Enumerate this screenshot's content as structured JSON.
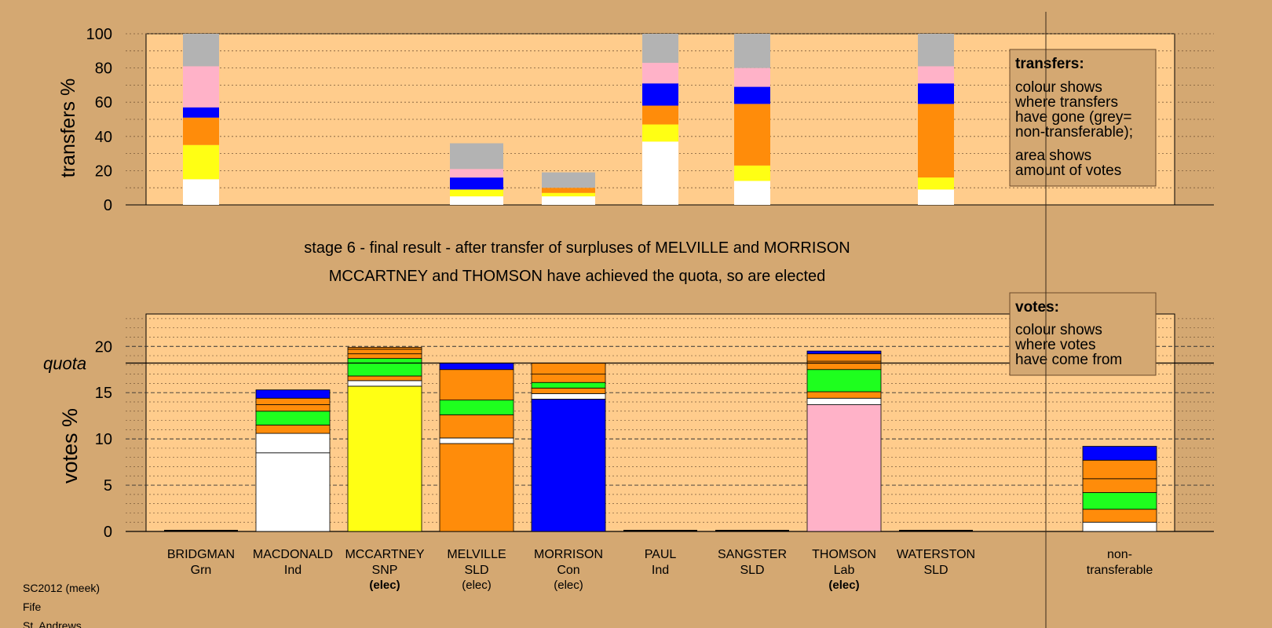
{
  "top_chart": {
    "ylabel": "transfers %",
    "yticks": [
      0,
      20,
      40,
      60,
      80,
      100
    ],
    "ylim": [
      0,
      100
    ],
    "legend_title": "transfers:",
    "legend_lines_1": [
      "colour shows",
      "where transfers",
      "have gone (grey=",
      "non-transferable);"
    ],
    "legend_lines_2": [
      "area shows",
      "amount of votes"
    ]
  },
  "titles": {
    "line1": "stage 6 - final result - after transfer of surpluses of MELVILLE and MORRISON",
    "line2": "MCCARTNEY and THOMSON have achieved the quota, so are elected"
  },
  "bottom_chart": {
    "ylabel": "votes %",
    "quota_label": "quota",
    "quota": 18.2,
    "yticks": [
      0,
      5,
      10,
      15,
      20
    ],
    "ylim": [
      0,
      23.5
    ],
    "legend_title": "votes:",
    "legend_lines": [
      "colour shows",
      "where votes",
      "have come from"
    ]
  },
  "candidates": [
    {
      "name": "BRIDGMAN",
      "party": "Grn",
      "status": ""
    },
    {
      "name": "MACDONALD",
      "party": "Ind",
      "status": ""
    },
    {
      "name": "MCCARTNEY",
      "party": "SNP",
      "status": "(elec)",
      "status_bold": true
    },
    {
      "name": "MELVILLE",
      "party": "SLD",
      "status": "(elec)",
      "status_bold": false
    },
    {
      "name": "MORRISON",
      "party": "Con",
      "status": "(elec)",
      "status_bold": false
    },
    {
      "name": "PAUL",
      "party": "Ind",
      "status": ""
    },
    {
      "name": "SANGSTER",
      "party": "SLD",
      "status": ""
    },
    {
      "name": "THOMSON",
      "party": "Lab",
      "status": "(elec)",
      "status_bold": true
    },
    {
      "name": "WATERSTON",
      "party": "SLD",
      "status": ""
    }
  ],
  "nontransferable_label": [
    "non-",
    "transferable"
  ],
  "footer": [
    "SC2012 (meek)",
    "Fife",
    "St. Andrews"
  ],
  "colors": {
    "background": "#D4A872",
    "plot_bg": "#FFCC8C",
    "white": "#FFFFFF",
    "yellow": "#FFFF14",
    "orange": "#FF8C0A",
    "green": "#1EFF1E",
    "blue": "#0000FF",
    "pink": "#FFB2C8",
    "grey": "#B3B3B3"
  },
  "chart_data": [
    {
      "type": "bar",
      "stacked": true,
      "title": "",
      "ylabel": "transfers %",
      "ylim": [
        0,
        100
      ],
      "categories": [
        "BRIDGMAN",
        "MACDONALD",
        "MCCARTNEY",
        "MELVILLE",
        "MORRISON",
        "PAUL",
        "SANGSTER",
        "THOMSON",
        "WATERSTON"
      ],
      "bars": [
        {
          "category": "BRIDGMAN",
          "segments": [
            {
              "color": "white",
              "value": 15
            },
            {
              "color": "yellow",
              "value": 20
            },
            {
              "color": "orange",
              "value": 16
            },
            {
              "color": "blue",
              "value": 6
            },
            {
              "color": "pink",
              "value": 24
            },
            {
              "color": "grey",
              "value": 19
            }
          ]
        },
        {
          "category": "MELVILLE",
          "segments": [
            {
              "color": "white",
              "value": 5
            },
            {
              "color": "yellow",
              "value": 4
            },
            {
              "color": "blue",
              "value": 7
            },
            {
              "color": "pink",
              "value": 5
            },
            {
              "color": "grey",
              "value": 15
            }
          ]
        },
        {
          "category": "MORRISON",
          "segments": [
            {
              "color": "white",
              "value": 5
            },
            {
              "color": "yellow",
              "value": 2
            },
            {
              "color": "orange",
              "value": 3
            },
            {
              "color": "grey",
              "value": 9
            }
          ]
        },
        {
          "category": "PAUL",
          "segments": [
            {
              "color": "white",
              "value": 37
            },
            {
              "color": "yellow",
              "value": 10
            },
            {
              "color": "orange",
              "value": 11
            },
            {
              "color": "blue",
              "value": 13
            },
            {
              "color": "pink",
              "value": 12
            },
            {
              "color": "grey",
              "value": 17
            }
          ]
        },
        {
          "category": "SANGSTER",
          "segments": [
            {
              "color": "white",
              "value": 14
            },
            {
              "color": "yellow",
              "value": 9
            },
            {
              "color": "orange",
              "value": 36
            },
            {
              "color": "blue",
              "value": 10
            },
            {
              "color": "pink",
              "value": 11
            },
            {
              "color": "grey",
              "value": 20
            }
          ]
        },
        {
          "category": "WATERSTON",
          "segments": [
            {
              "color": "white",
              "value": 9
            },
            {
              "color": "yellow",
              "value": 7
            },
            {
              "color": "orange",
              "value": 43
            },
            {
              "color": "blue",
              "value": 12
            },
            {
              "color": "pink",
              "value": 10
            },
            {
              "color": "grey",
              "value": 19
            }
          ]
        }
      ]
    },
    {
      "type": "bar",
      "stacked": true,
      "title": "",
      "ylabel": "votes %",
      "ylim": [
        0,
        23.5
      ],
      "quota": 18.2,
      "categories": [
        "BRIDGMAN",
        "MACDONALD",
        "MCCARTNEY",
        "MELVILLE",
        "MORRISON",
        "PAUL",
        "SANGSTER",
        "THOMSON",
        "WATERSTON",
        "non-transferable"
      ],
      "bars": [
        {
          "category": "BRIDGMAN",
          "segments": []
        },
        {
          "category": "MACDONALD",
          "segments": [
            {
              "color": "white",
              "value": 8.5
            },
            {
              "color": "white",
              "value": 2.1
            },
            {
              "color": "orange",
              "value": 0.9
            },
            {
              "color": "green",
              "value": 1.5
            },
            {
              "color": "orange",
              "value": 0.7
            },
            {
              "color": "orange",
              "value": 0.7
            },
            {
              "color": "blue",
              "value": 0.9
            }
          ]
        },
        {
          "category": "MCCARTNEY",
          "segments": [
            {
              "color": "yellow",
              "value": 15.7
            },
            {
              "color": "white",
              "value": 0.6
            },
            {
              "color": "orange",
              "value": 0.5
            },
            {
              "color": "green",
              "value": 1.9
            },
            {
              "color": "orange",
              "value": 0.5
            },
            {
              "color": "orange",
              "value": 0.5
            },
            {
              "color": "orange",
              "value": 0.2
            }
          ]
        },
        {
          "category": "MELVILLE",
          "segments": [
            {
              "color": "orange",
              "value": 9.5
            },
            {
              "color": "white",
              "value": 0.6
            },
            {
              "color": "orange",
              "value": 2.5
            },
            {
              "color": "green",
              "value": 1.6
            },
            {
              "color": "orange",
              "value": 3.3
            },
            {
              "color": "blue",
              "value": 0.7
            }
          ]
        },
        {
          "category": "MORRISON",
          "segments": [
            {
              "color": "blue",
              "value": 14.3
            },
            {
              "color": "white",
              "value": 0.6
            },
            {
              "color": "orange",
              "value": 0.6
            },
            {
              "color": "green",
              "value": 0.6
            },
            {
              "color": "orange",
              "value": 0.9
            },
            {
              "color": "orange",
              "value": 1.2
            }
          ]
        },
        {
          "category": "PAUL",
          "segments": []
        },
        {
          "category": "SANGSTER",
          "segments": []
        },
        {
          "category": "THOMSON",
          "segments": [
            {
              "color": "pink",
              "value": 13.7
            },
            {
              "color": "white",
              "value": 0.7
            },
            {
              "color": "orange",
              "value": 0.7
            },
            {
              "color": "green",
              "value": 2.4
            },
            {
              "color": "orange",
              "value": 0.9
            },
            {
              "color": "orange",
              "value": 0.8
            },
            {
              "color": "blue",
              "value": 0.3
            }
          ]
        },
        {
          "category": "WATERSTON",
          "segments": []
        },
        {
          "category": "non-transferable",
          "segments": [
            {
              "color": "white",
              "value": 1.0
            },
            {
              "color": "orange",
              "value": 1.4
            },
            {
              "color": "green",
              "value": 1.8
            },
            {
              "color": "orange",
              "value": 1.5
            },
            {
              "color": "orange",
              "value": 2.0
            },
            {
              "color": "blue",
              "value": 1.5
            }
          ]
        }
      ]
    }
  ]
}
